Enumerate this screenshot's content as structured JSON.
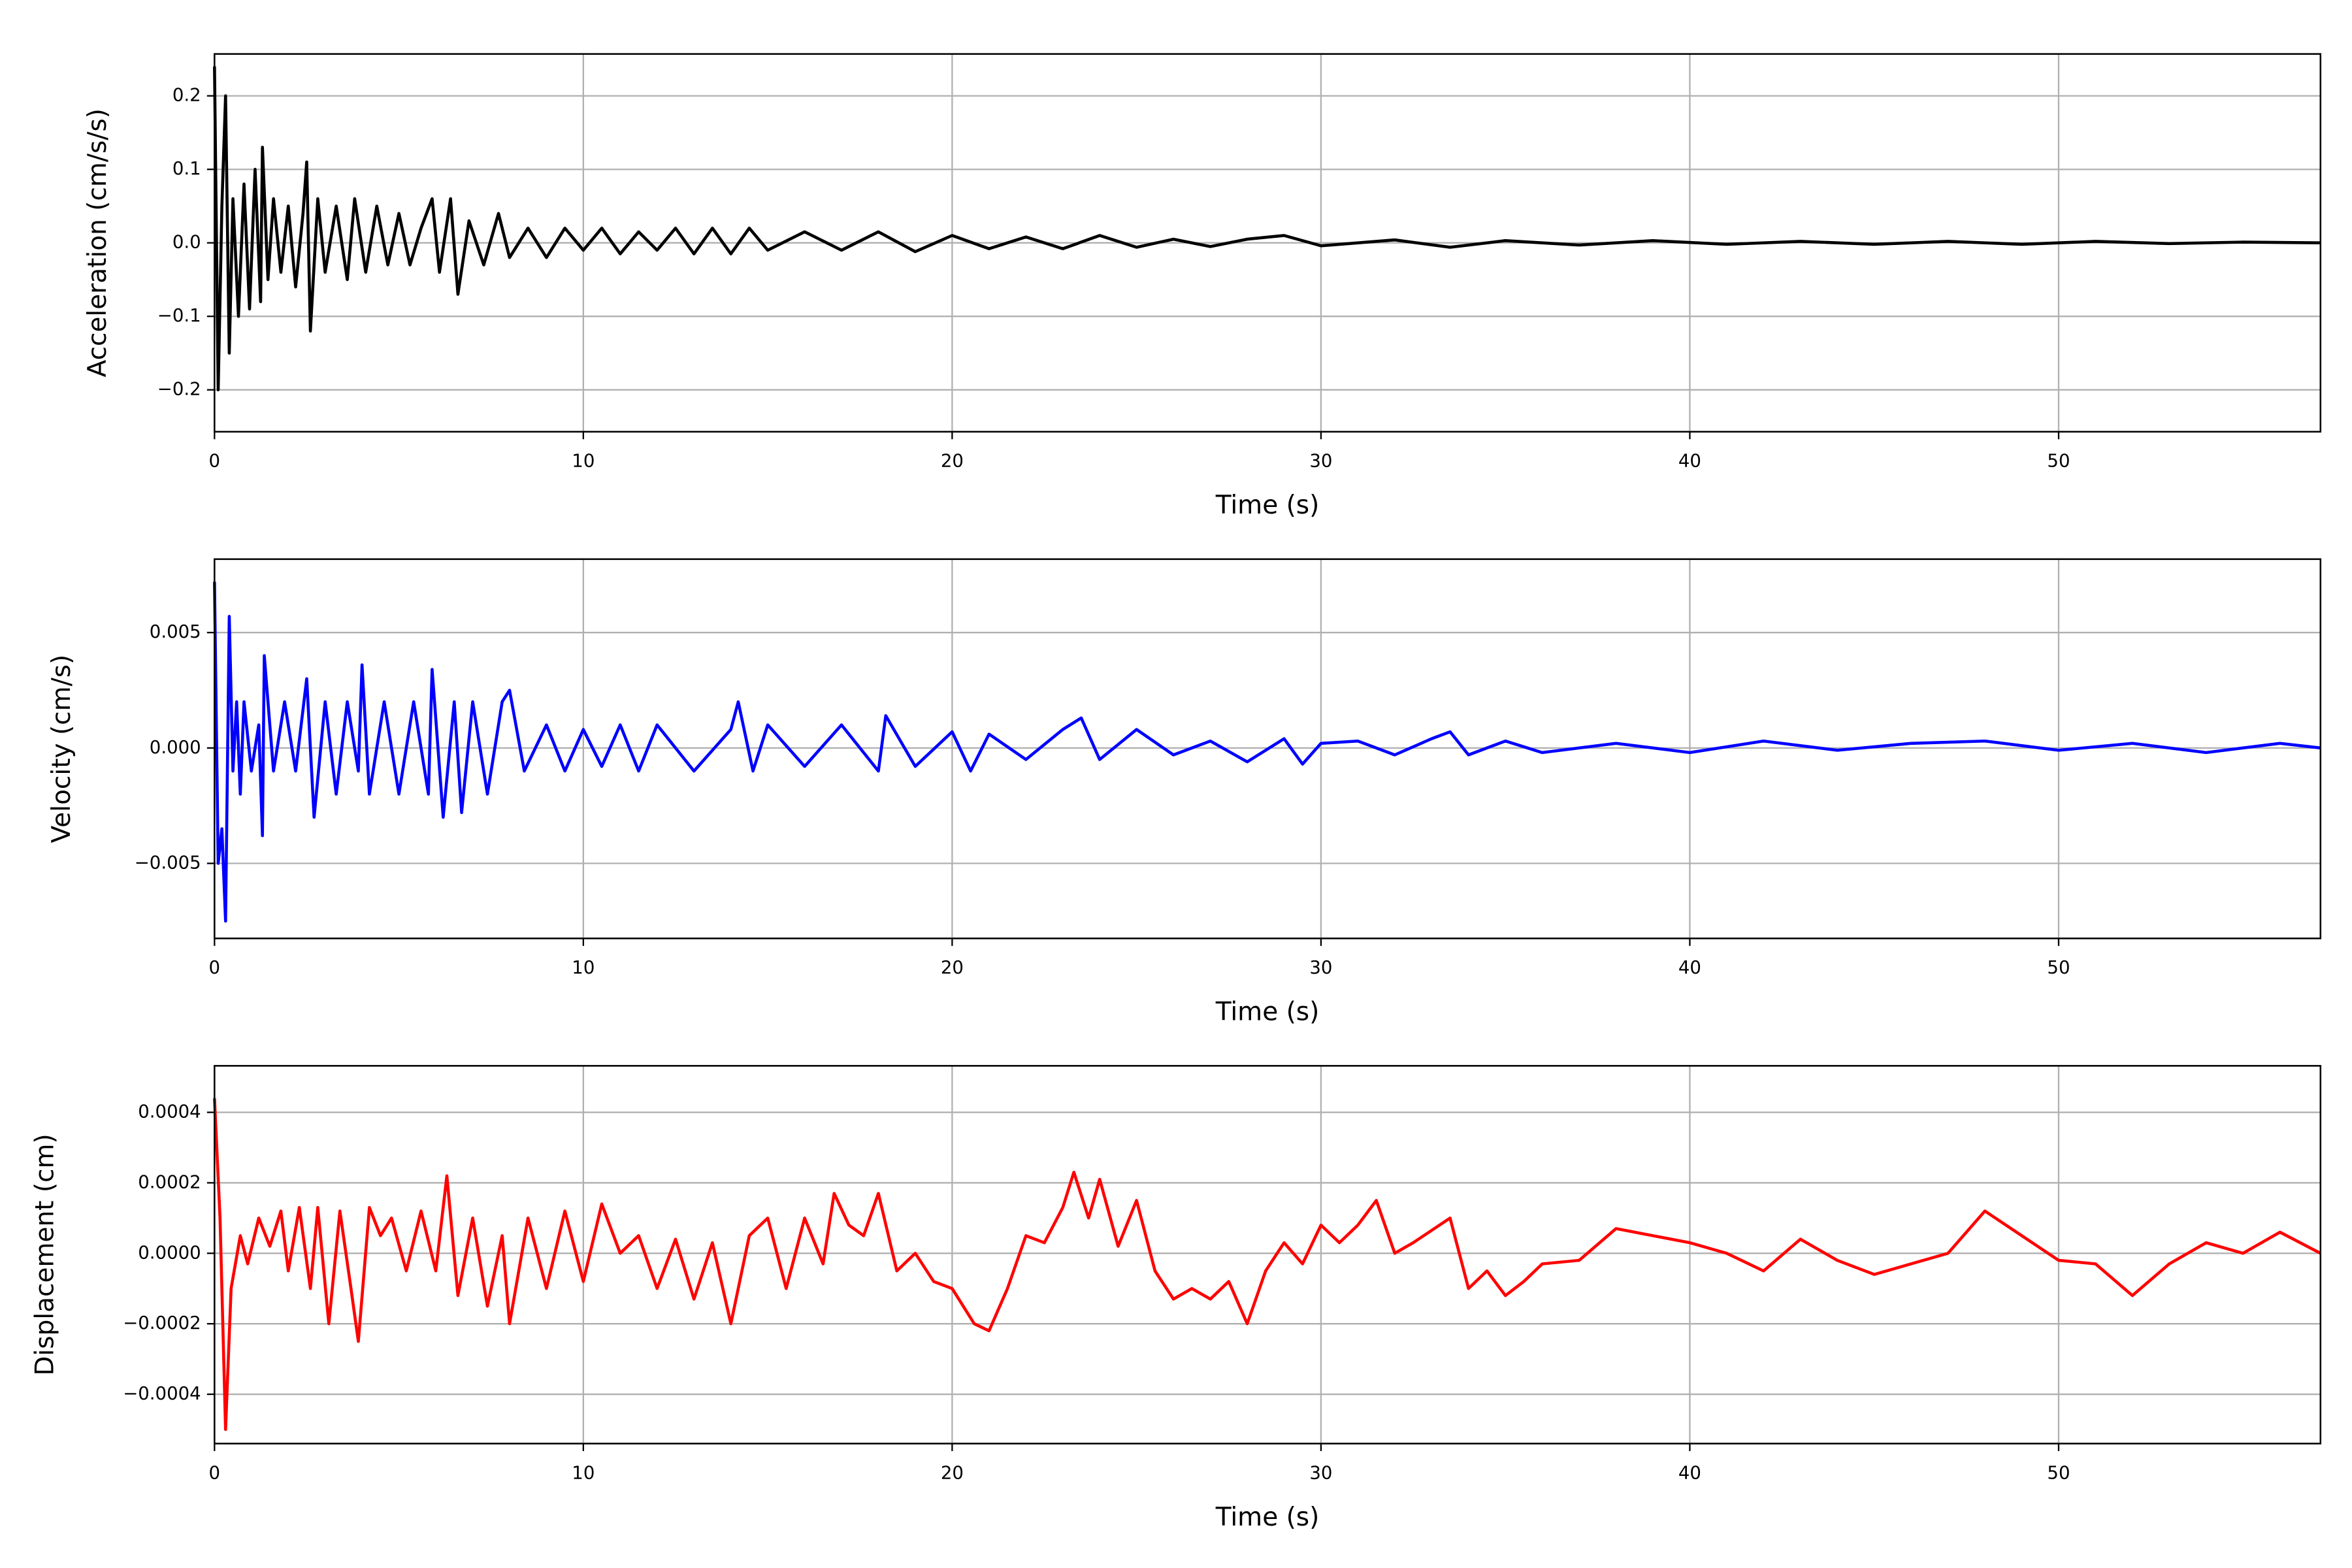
{
  "chart_data": [
    {
      "type": "line",
      "xlabel": "Time (s)",
      "ylabel": "Acceleration (cm/s/s)",
      "color": "#000000",
      "grid": true,
      "xlim": [
        0,
        57.1
      ],
      "ylim": [
        -0.257,
        0.257
      ],
      "xticks": [
        0,
        10,
        20,
        30,
        40,
        50
      ],
      "yticks": [
        {
          "value": -0.2,
          "label": "−0.2"
        },
        {
          "value": -0.1,
          "label": "−0.1"
        },
        {
          "value": 0,
          "label": "0.0"
        },
        0.1,
        0.2
      ],
      "x": [
        0,
        0.1,
        0.2,
        0.3,
        0.4,
        0.5,
        0.65,
        0.8,
        0.95,
        1.1,
        1.25,
        1.3,
        1.45,
        1.6,
        1.8,
        2.0,
        2.2,
        2.4,
        2.5,
        2.6,
        2.8,
        3.0,
        3.3,
        3.6,
        3.8,
        4.1,
        4.4,
        4.7,
        5.0,
        5.3,
        5.6,
        5.9,
        6.1,
        6.4,
        6.6,
        6.9,
        7.3,
        7.7,
        8.0,
        8.5,
        9.0,
        9.5,
        10,
        10.5,
        11,
        11.5,
        12,
        12.5,
        13,
        13.5,
        14,
        14.5,
        15,
        16,
        17,
        18,
        19,
        20,
        21,
        22,
        23,
        24,
        25,
        26,
        27,
        28,
        29,
        30,
        32,
        33.5,
        35,
        37,
        39,
        41,
        43,
        45,
        47,
        49,
        51,
        53,
        55,
        57.1
      ],
      "values": [
        0.24,
        -0.2,
        0.05,
        0.2,
        -0.15,
        0.06,
        -0.1,
        0.08,
        -0.09,
        0.1,
        -0.08,
        0.13,
        -0.05,
        0.06,
        -0.04,
        0.05,
        -0.06,
        0.04,
        0.11,
        -0.12,
        0.06,
        -0.04,
        0.05,
        -0.05,
        0.06,
        -0.04,
        0.05,
        -0.03,
        0.04,
        -0.03,
        0.02,
        0.06,
        -0.04,
        0.06,
        -0.07,
        0.03,
        -0.03,
        0.04,
        -0.02,
        0.02,
        -0.02,
        0.02,
        -0.01,
        0.02,
        -0.015,
        0.015,
        -0.01,
        0.02,
        -0.015,
        0.02,
        -0.015,
        0.02,
        -0.01,
        0.015,
        -0.01,
        0.015,
        -0.012,
        0.01,
        -0.008,
        0.008,
        -0.008,
        0.01,
        -0.006,
        0.005,
        -0.005,
        0.005,
        0.01,
        -0.004,
        0.004,
        -0.006,
        0.003,
        -0.003,
        0.003,
        -0.002,
        0.002,
        -0.002,
        0.002,
        -0.002,
        0.002,
        -0.001,
        0.001,
        0.0
      ]
    },
    {
      "type": "line",
      "xlabel": "Time (s)",
      "ylabel": "Velocity (cm/s)",
      "color": "#0000ff",
      "grid": true,
      "xlim": [
        0,
        57.1
      ],
      "ylim": [
        -0.00825,
        0.00818
      ],
      "xticks": [
        0,
        10,
        20,
        30,
        40,
        50
      ],
      "yticks": [
        {
          "value": -0.005,
          "label": "−0.005"
        },
        {
          "value": 0,
          "label": "0.000"
        },
        0.005
      ],
      "x": [
        0,
        0.1,
        0.2,
        0.3,
        0.4,
        0.5,
        0.6,
        0.7,
        0.8,
        1.0,
        1.2,
        1.3,
        1.35,
        1.6,
        1.9,
        2.2,
        2.5,
        2.7,
        3.0,
        3.3,
        3.6,
        3.9,
        4.0,
        4.2,
        4.6,
        5.0,
        5.4,
        5.8,
        5.9,
        6.2,
        6.5,
        6.7,
        7.0,
        7.4,
        7.8,
        8.0,
        8.4,
        9.0,
        9.5,
        10,
        10.5,
        11,
        11.5,
        12,
        13,
        14,
        14.2,
        14.6,
        15,
        16,
        17,
        18,
        18.2,
        19,
        20,
        20.5,
        21,
        22,
        23,
        23.5,
        24,
        25,
        26,
        27,
        28,
        29,
        29.5,
        30,
        31,
        32,
        33,
        33.5,
        34,
        35,
        36,
        38,
        40,
        42,
        44,
        46,
        48,
        50,
        52,
        54,
        56,
        57.1
      ],
      "values": [
        0.0072,
        -0.005,
        -0.0035,
        -0.0075,
        0.0057,
        -0.001,
        0.002,
        -0.002,
        0.002,
        -0.001,
        0.001,
        -0.0038,
        0.004,
        -0.001,
        0.002,
        -0.001,
        0.003,
        -0.003,
        0.002,
        -0.002,
        0.002,
        -0.001,
        0.0036,
        -0.002,
        0.002,
        -0.002,
        0.002,
        -0.002,
        0.0034,
        -0.003,
        0.002,
        -0.0028,
        0.002,
        -0.002,
        0.002,
        0.0025,
        -0.001,
        0.001,
        -0.001,
        0.0008,
        -0.0008,
        0.001,
        -0.001,
        0.001,
        -0.001,
        0.0008,
        0.002,
        -0.001,
        0.001,
        -0.0008,
        0.001,
        -0.001,
        0.0014,
        -0.0008,
        0.0007,
        -0.001,
        0.0006,
        -0.0005,
        0.0008,
        0.0013,
        -0.0005,
        0.0008,
        -0.0003,
        0.0003,
        -0.0006,
        0.0004,
        -0.0007,
        0.0002,
        0.0003,
        -0.0003,
        0.0004,
        0.0007,
        -0.0003,
        0.0003,
        -0.0002,
        0.0002,
        -0.0002,
        0.0003,
        -0.0001,
        0.0002,
        0.0003,
        -0.0001,
        0.0002,
        -0.0002,
        0.0002,
        0.0
      ]
    },
    {
      "type": "line",
      "xlabel": "Time (s)",
      "ylabel": "Displacement (cm)",
      "color": "#ff0000",
      "grid": true,
      "xlim": [
        0,
        57.1
      ],
      "ylim": [
        -0.00054,
        0.000532
      ],
      "xticks": [
        0,
        10,
        20,
        30,
        40,
        50
      ],
      "yticks": [
        {
          "value": -0.0004,
          "label": "−0.0004"
        },
        {
          "value": -0.0002,
          "label": "−0.0002"
        },
        {
          "value": 0,
          "label": "0.0000"
        },
        0.0002,
        0.0004
      ],
      "x": [
        0,
        0.15,
        0.3,
        0.45,
        0.7,
        0.9,
        1.2,
        1.5,
        1.8,
        2.0,
        2.3,
        2.6,
        2.8,
        3.1,
        3.4,
        3.7,
        3.9,
        4.2,
        4.5,
        4.8,
        5.2,
        5.6,
        6.0,
        6.3,
        6.6,
        7.0,
        7.4,
        7.8,
        8.0,
        8.5,
        9.0,
        9.5,
        10.0,
        10.5,
        11,
        11.5,
        12,
        12.5,
        13,
        13.5,
        14,
        14.5,
        15,
        15.5,
        16,
        16.5,
        16.8,
        17.2,
        17.6,
        18,
        18.5,
        19,
        19.5,
        20,
        20.6,
        21.0,
        21.5,
        22,
        22.5,
        23,
        23.3,
        23.7,
        24,
        24.5,
        25,
        25.5,
        26,
        26.5,
        27,
        27.5,
        28,
        28.5,
        29,
        29.5,
        30,
        30.5,
        31,
        31.5,
        32,
        32.5,
        33.5,
        34,
        34.5,
        35,
        35.5,
        36,
        37,
        38,
        39,
        40,
        41,
        42,
        43,
        44,
        45,
        46,
        47,
        48,
        49,
        50,
        51,
        52,
        53,
        54,
        55,
        56,
        57.1
      ],
      "values": [
        0.00044,
        0.0001,
        -0.0005,
        -0.0001,
        5e-05,
        -3e-05,
        0.0001,
        2e-05,
        0.00012,
        -5e-05,
        0.00013,
        -0.0001,
        0.00013,
        -0.0002,
        0.00012,
        -0.0001,
        -0.00025,
        0.00013,
        5e-05,
        0.0001,
        -5e-05,
        0.00012,
        -5e-05,
        0.00022,
        -0.00012,
        0.0001,
        -0.00015,
        5e-05,
        -0.0002,
        0.0001,
        -0.0001,
        0.00012,
        -8e-05,
        0.00014,
        0.0,
        5e-05,
        -0.0001,
        4e-05,
        -0.00013,
        3e-05,
        -0.0002,
        5e-05,
        0.0001,
        -0.0001,
        0.0001,
        -3e-05,
        0.00017,
        8e-05,
        5e-05,
        0.00017,
        -5e-05,
        0.0,
        -8e-05,
        -0.0001,
        -0.0002,
        -0.00022,
        -0.0001,
        5e-05,
        3e-05,
        0.00013,
        0.00023,
        0.0001,
        0.00021,
        2e-05,
        0.00015,
        -5e-05,
        -0.00013,
        -0.0001,
        -0.00013,
        -8e-05,
        -0.0002,
        -5e-05,
        3e-05,
        -3e-05,
        8e-05,
        3e-05,
        8e-05,
        0.00015,
        0.0,
        3e-05,
        0.0001,
        -0.0001,
        -5e-05,
        -0.00012,
        -8e-05,
        -3e-05,
        -2e-05,
        7e-05,
        5e-05,
        3e-05,
        0.0,
        -5e-05,
        4e-05,
        -2e-05,
        -6e-05,
        -3e-05,
        0.0,
        0.00012,
        5e-05,
        -2e-05,
        -3e-05,
        -0.00012,
        -3e-05,
        3e-05,
        0.0,
        6e-05,
        0.0
      ]
    }
  ]
}
